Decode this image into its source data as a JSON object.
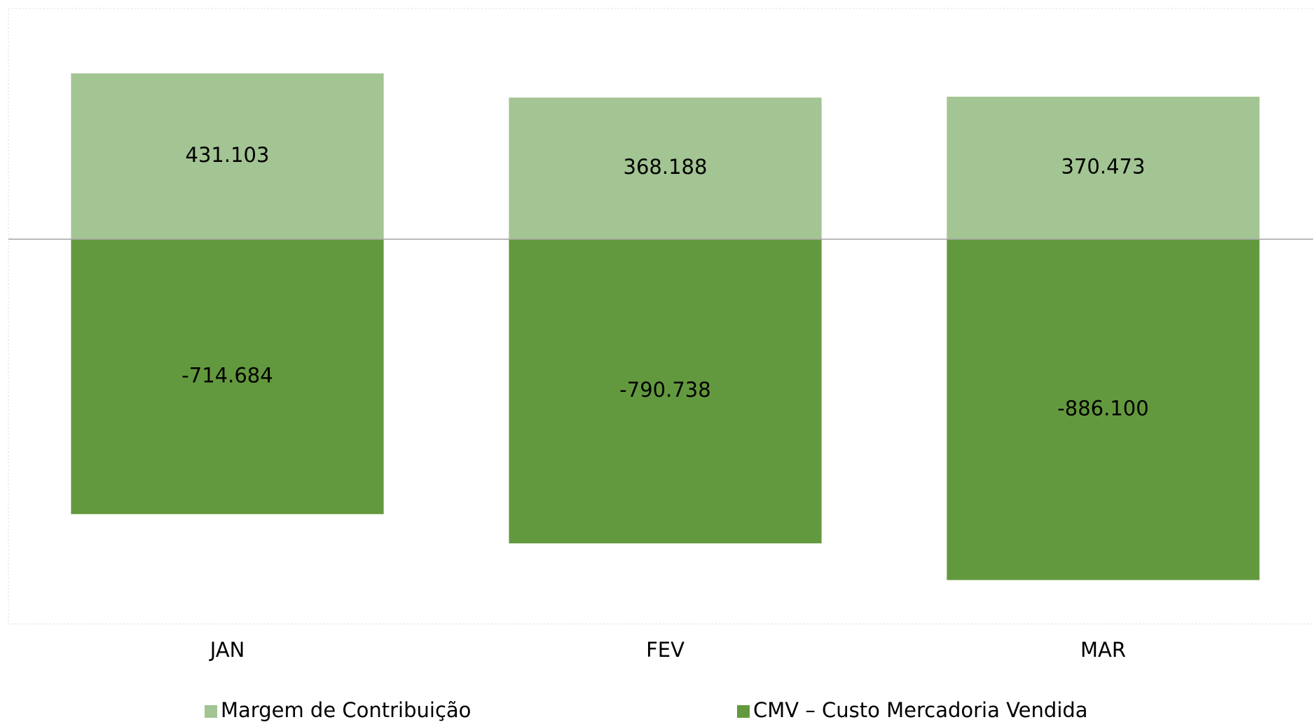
{
  "chart_data": {
    "type": "bar",
    "stacked": true,
    "categories": [
      "JAN",
      "FEV",
      "MAR"
    ],
    "series": [
      {
        "name": "Margem de Contribuição",
        "color": "#a3c493",
        "values": [
          431103,
          368188,
          370473
        ],
        "value_labels": [
          "431.103",
          "368.188",
          "370.473"
        ]
      },
      {
        "name": "CMV – Custo Mercadoria Vendida",
        "color": "#63993e",
        "values": [
          -714684,
          -790738,
          -886100
        ],
        "value_labels": [
          "-714.684",
          "-790.738",
          "-886.100"
        ]
      }
    ],
    "ylim": [
      -1000000,
      600000
    ],
    "grid": false,
    "legend": "bottom"
  }
}
